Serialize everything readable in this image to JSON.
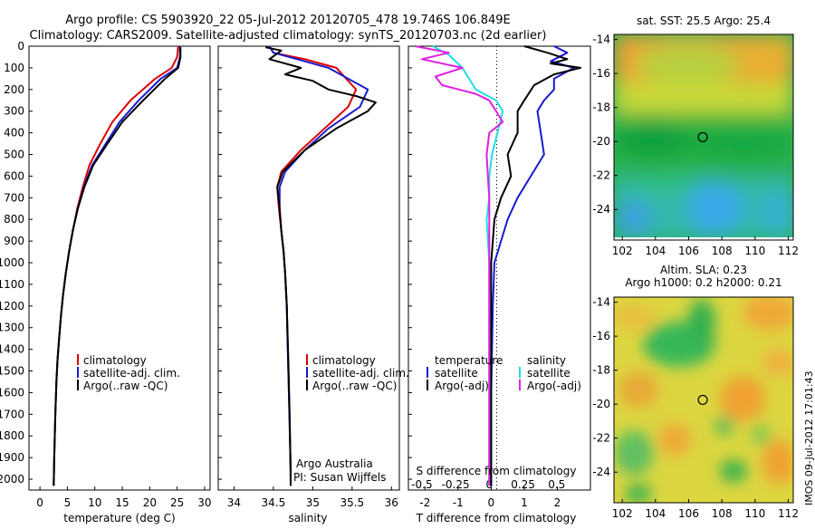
{
  "header": {
    "title": "Argo profile: CS 5903920_22 05-Jul-2012 20120705_478 19.746S 106.849E",
    "subtitle": "Climatology: CARS2009. Satellite-adjusted climatology: synTS_20120703.nc (2d earlier)"
  },
  "depth_ticks": [
    "0",
    "100",
    "200",
    "300",
    "400",
    "500",
    "600",
    "700",
    "800",
    "900",
    "1000",
    "1100",
    "1200",
    "1300",
    "1400",
    "1500",
    "1600",
    "1700",
    "1800",
    "1900",
    "2000"
  ],
  "colors": {
    "climatology": "#dd0000",
    "satellite": "#1a1ad0",
    "argo": "#000000",
    "satellite_s": "#22dde6",
    "argo_s": "#e020e0"
  },
  "panels": {
    "temperature": {
      "xlabel": "temperature (deg C)",
      "xticks": [
        "0",
        "5",
        "10",
        "15",
        "20",
        "25",
        "30"
      ],
      "legend": [
        "climatology",
        "satellite-adj. clim.",
        "Argo(..raw -QC)"
      ]
    },
    "salinity": {
      "xlabel": "salinity",
      "xticks": [
        "34",
        "34.5",
        "35",
        "35.5",
        "36"
      ],
      "legend": [
        "climatology",
        "satellite-adj. clim.",
        "Argo(..raw -QC)"
      ],
      "credit_1": "Argo Australia",
      "credit_2": "PI: Susan Wijffels"
    },
    "difference": {
      "legend_t_head": "temperature",
      "legend_s_head": "salinity",
      "legend_t": [
        "satellite",
        "Argo(-adj)"
      ],
      "legend_s": [
        "satellite",
        "Argo(-adj)"
      ],
      "s_label": "S difference from climatology",
      "s_ticks": [
        "-0.5",
        "-0.25",
        "0",
        "0.25",
        "0.5"
      ],
      "t_label": "T difference from climatology",
      "t_ticks": [
        "-2",
        "-1",
        "0",
        "1",
        "2"
      ]
    }
  },
  "maps": {
    "sst_title": "sat. SST: 25.5  Argo: 25.4",
    "sla_title_1": "Altim. SLA: 0.23",
    "sla_title_2": "Argo h1000: 0.2 h2000: 0.21",
    "yticks": [
      "-14",
      "-16",
      "-18",
      "-20",
      "-22",
      "-24"
    ],
    "xticks": [
      "102",
      "104",
      "106",
      "108",
      "110",
      "112"
    ],
    "float_lon": 106.849,
    "float_lat": -19.746
  },
  "stamp": "IMOS 09-Jul-2012 17:01:43",
  "chart_data": [
    {
      "type": "line",
      "title": "",
      "xlabel": "temperature (deg C)",
      "ylabel": "",
      "xlim": [
        -2,
        31
      ],
      "ylim": [
        2050,
        0
      ],
      "series": [
        {
          "name": "climatology",
          "x": [
            25.2,
            25.0,
            24.0,
            21.0,
            16.5,
            13.2,
            11.0,
            9.0,
            7.8,
            6.8,
            6.0,
            5.3,
            4.7,
            4.2,
            3.8,
            3.5,
            3.2,
            3.0,
            2.8,
            2.6,
            2.5
          ],
          "y": [
            0,
            50,
            100,
            150,
            250,
            350,
            450,
            550,
            650,
            750,
            850,
            950,
            1050,
            1150,
            1250,
            1350,
            1450,
            1550,
            1700,
            1900,
            2030
          ]
        },
        {
          "name": "satellite-adj. clim.",
          "x": [
            25.5,
            25.5,
            25.0,
            22.0,
            18.0,
            14.5,
            12.0,
            9.5,
            8.0,
            6.9,
            6.0,
            5.3,
            4.7,
            4.2,
            3.8,
            3.5,
            3.2,
            3.0,
            2.8,
            2.6,
            2.5
          ],
          "y": [
            0,
            50,
            100,
            150,
            250,
            350,
            450,
            550,
            650,
            750,
            850,
            950,
            1050,
            1150,
            1250,
            1350,
            1450,
            1550,
            1700,
            1900,
            2030
          ]
        },
        {
          "name": "Argo(..raw -QC)",
          "x": [
            25.6,
            25.6,
            25.2,
            22.8,
            18.8,
            15.0,
            12.3,
            9.7,
            8.1,
            6.9,
            6.0,
            5.3,
            4.7,
            4.2,
            3.8,
            3.5,
            3.2,
            3.0,
            2.8,
            2.6,
            2.5
          ],
          "y": [
            5,
            50,
            100,
            150,
            250,
            350,
            450,
            550,
            650,
            750,
            850,
            950,
            1050,
            1150,
            1250,
            1350,
            1450,
            1550,
            1700,
            1900,
            2030
          ]
        }
      ]
    },
    {
      "type": "line",
      "title": "",
      "xlabel": "salinity",
      "ylabel": "",
      "xlim": [
        33.8,
        36.1
      ],
      "ylim": [
        2050,
        0
      ],
      "series": [
        {
          "name": "climatology",
          "x": [
            34.45,
            34.5,
            34.9,
            35.3,
            35.55,
            35.45,
            35.15,
            34.85,
            34.6,
            34.55,
            34.57,
            34.6,
            34.63,
            34.65,
            34.67,
            34.68,
            34.69,
            34.7,
            34.71,
            34.72,
            34.72
          ],
          "y": [
            0,
            30,
            60,
            100,
            200,
            280,
            380,
            480,
            580,
            650,
            750,
            850,
            950,
            1050,
            1200,
            1350,
            1500,
            1650,
            1800,
            1950,
            2030
          ]
        },
        {
          "name": "satellite-adj. clim.",
          "x": [
            34.45,
            34.5,
            34.8,
            35.2,
            35.7,
            35.6,
            35.2,
            34.9,
            34.65,
            34.58,
            34.58,
            34.6,
            34.63,
            34.65,
            34.67,
            34.68,
            34.69,
            34.7,
            34.71,
            34.72,
            34.72
          ],
          "y": [
            0,
            30,
            60,
            100,
            200,
            280,
            380,
            480,
            580,
            650,
            750,
            850,
            950,
            1050,
            1200,
            1350,
            1500,
            1650,
            1800,
            1950,
            2030
          ]
        },
        {
          "name": "Argo(..raw -QC)",
          "x": [
            34.4,
            34.6,
            34.45,
            34.85,
            34.65,
            35.0,
            35.2,
            35.55,
            35.8,
            35.7,
            35.3,
            34.9,
            34.62,
            34.55,
            34.58,
            34.6,
            34.63,
            34.65,
            34.67,
            34.69,
            34.71,
            34.72
          ],
          "y": [
            5,
            20,
            60,
            100,
            130,
            160,
            200,
            230,
            260,
            300,
            380,
            480,
            580,
            650,
            750,
            850,
            950,
            1050,
            1200,
            1450,
            1750,
            2030
          ]
        }
      ]
    },
    {
      "type": "line",
      "title": "",
      "xlabel": "T difference from climatology",
      "ylabel": "",
      "xlim": [
        -2.5,
        3.0
      ],
      "ylim": [
        2050,
        0
      ],
      "series": [
        {
          "name": "temperature satellite",
          "x": [
            1.9,
            2.3,
            1.8,
            2.5,
            1.9,
            1.9,
            1.6,
            1.4,
            1.5,
            1.6,
            1.2,
            0.8,
            0.5,
            0.3,
            0.1,
            0.05,
            0.0,
            0.0
          ],
          "y": [
            0,
            30,
            70,
            100,
            150,
            200,
            250,
            300,
            400,
            500,
            600,
            700,
            800,
            900,
            1000,
            1200,
            1600,
            2030
          ]
        },
        {
          "name": "temperature Argo(-adj)",
          "x": [
            1.0,
            1.7,
            2.3,
            1.8,
            2.7,
            1.9,
            1.3,
            1.0,
            0.8,
            0.8,
            0.5,
            0.6,
            0.3,
            0.1,
            0.05,
            0.0,
            0.0,
            0.0
          ],
          "y": [
            0,
            30,
            60,
            80,
            100,
            130,
            180,
            250,
            300,
            400,
            500,
            600,
            700,
            800,
            900,
            1000,
            1500,
            2030
          ]
        }
      ]
    },
    {
      "type": "line",
      "title": "",
      "xlabel": "S difference from climatology",
      "ylabel": "",
      "xlim": [
        -0.6,
        0.75
      ],
      "ylim": [
        2050,
        0
      ],
      "series": [
        {
          "name": "salinity satellite",
          "x": [
            -0.42,
            -0.3,
            -0.2,
            -0.15,
            -0.1,
            0.05,
            0.1,
            0.06,
            0.02,
            0.0,
            0.0,
            -0.02,
            0.0,
            0.0
          ],
          "y": [
            0,
            40,
            100,
            150,
            200,
            250,
            300,
            400,
            500,
            600,
            700,
            800,
            1000,
            2030
          ]
        },
        {
          "name": "salinity Argo(-adj)",
          "x": [
            -0.55,
            -0.3,
            -0.5,
            -0.2,
            -0.4,
            -0.35,
            -0.1,
            0.0,
            0.05,
            0.1,
            0.0,
            -0.02,
            -0.01,
            0.0,
            0.0,
            0.0
          ],
          "y": [
            0,
            30,
            60,
            100,
            140,
            180,
            220,
            250,
            300,
            350,
            400,
            500,
            600,
            700,
            900,
            2030
          ]
        }
      ]
    },
    {
      "type": "heatmap",
      "title": "sat. SST: 25.5  Argo: 25.4",
      "xlim": [
        101.5,
        112.3
      ],
      "ylim": [
        -25.8,
        -13.7
      ],
      "x": [
        102,
        104,
        106,
        108,
        110,
        112
      ],
      "y": [
        -14,
        -16,
        -18,
        -20,
        -22,
        -24
      ]
    },
    {
      "type": "heatmap",
      "title": "Altim. SLA: 0.23",
      "xlim": [
        101.5,
        112.3
      ],
      "ylim": [
        -25.8,
        -13.7
      ],
      "x": [
        102,
        104,
        106,
        108,
        110,
        112
      ],
      "y": [
        -14,
        -16,
        -18,
        -20,
        -22,
        -24
      ]
    }
  ]
}
